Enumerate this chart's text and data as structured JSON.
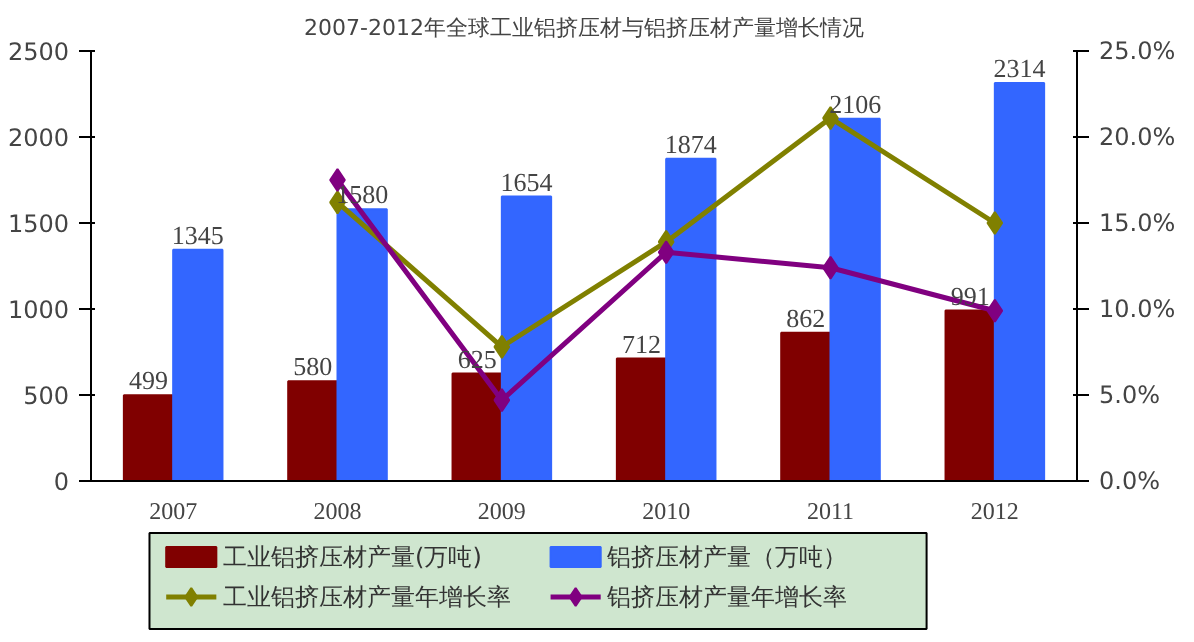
{
  "chart_data": {
    "type": "bar",
    "title": "2007-2012年全球工业铝挤压材与铝挤压材产量增长情况",
    "categories": [
      "2007",
      "2008",
      "2009",
      "2010",
      "2011",
      "2012"
    ],
    "series": [
      {
        "name": "工业铝挤压材产量(万吨)",
        "color": "#800000",
        "values": [
          499,
          580,
          625,
          712,
          862,
          991
        ],
        "value_labels": [
          "499",
          "580",
          "625",
          "712",
          "862",
          "991"
        ]
      },
      {
        "name": "铝挤压材产量（万吨）",
        "color": "#3366ff",
        "values": [
          1345,
          1580,
          1654,
          1874,
          2106,
          2314
        ],
        "value_labels": [
          "1345",
          "1580",
          "1654",
          "1874",
          "2106",
          "2314"
        ]
      },
      {
        "name": "工业铝挤压材产量年增长率",
        "type": "line",
        "axis": "y2",
        "color": "#808000",
        "values": [
          null,
          16.2,
          7.8,
          13.9,
          21.1,
          15.0
        ]
      },
      {
        "name": "铝挤压材产量年增长率",
        "type": "line",
        "axis": "y2",
        "color": "#800080",
        "values": [
          null,
          17.5,
          4.7,
          13.3,
          12.4,
          9.9
        ]
      }
    ],
    "ylim": [
      0,
      2500
    ],
    "yticks": [
      0,
      500,
      1000,
      1500,
      2000,
      2500
    ],
    "y2lim": [
      0,
      25
    ],
    "y2ticks": [
      {
        "value": 0,
        "label": "0.0%"
      },
      {
        "value": 5,
        "label": "5.0%"
      },
      {
        "value": 10,
        "label": "10.0%"
      },
      {
        "value": 15,
        "label": "15.0%"
      },
      {
        "value": 20,
        "label": "20.0%"
      },
      {
        "value": 25,
        "label": "25.0%"
      }
    ],
    "marker": "diamond",
    "line_style": "solid",
    "legend": "bottom"
  }
}
